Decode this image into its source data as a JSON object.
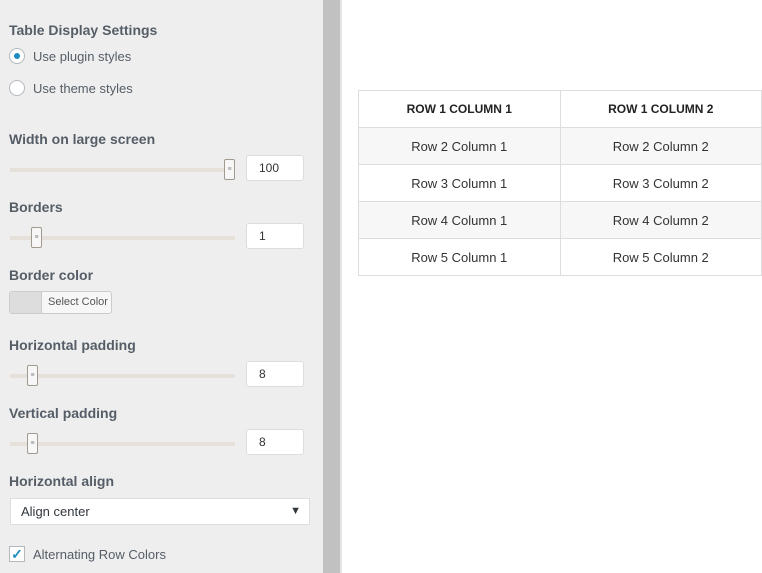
{
  "settings": {
    "title": "Table Display Settings",
    "style_options": [
      {
        "label": "Use plugin styles",
        "selected": true
      },
      {
        "label": "Use theme styles",
        "selected": false
      }
    ],
    "width": {
      "label": "Width on large screen",
      "value": "100",
      "fraction": 1.0
    },
    "borders": {
      "label": "Borders",
      "value": "1",
      "fraction": 0.1
    },
    "border_color": {
      "label": "Border color",
      "button": "Select Color",
      "swatch": "#dddddd"
    },
    "h_padding": {
      "label": "Horizontal padding",
      "value": "8",
      "fraction": 0.08
    },
    "v_padding": {
      "label": "Vertical padding",
      "value": "8",
      "fraction": 0.08
    },
    "h_align": {
      "label": "Horizontal align",
      "value": "Align center"
    },
    "alternating": {
      "label": "Alternating Row Colors",
      "checked": true
    }
  },
  "table": {
    "rows": [
      [
        "ROW 1 COLUMN 1",
        "ROW 1 COLUMN 2"
      ],
      [
        "Row 2 Column 1",
        "Row 2 Column 2"
      ],
      [
        "Row 3 Column 1",
        "Row 3 Column 2"
      ],
      [
        "Row 4 Column 1",
        "Row 4 Column 2"
      ],
      [
        "Row 5 Column 1",
        "Row 5 Column 2"
      ]
    ]
  }
}
